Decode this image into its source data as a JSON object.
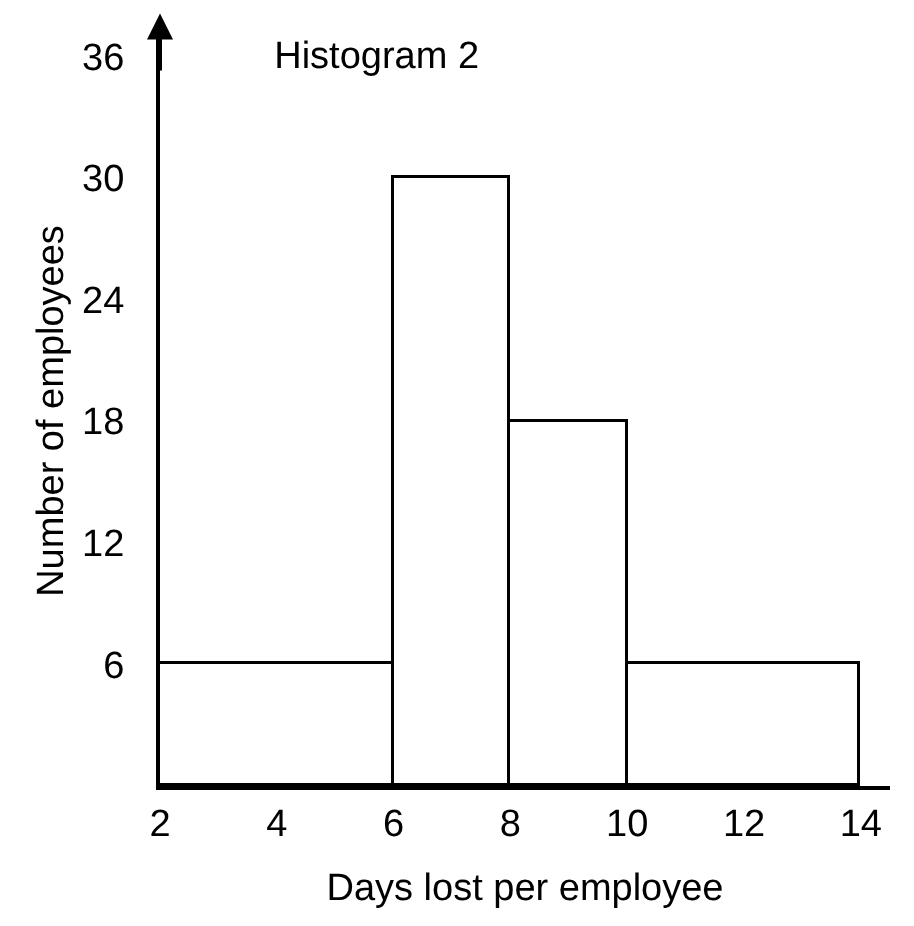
{
  "chart_data": {
    "type": "histogram",
    "title": "Histogram 2",
    "xlabel": "Days lost per employee",
    "ylabel": "Number of employees",
    "bins": [
      2,
      6,
      8,
      10,
      14
    ],
    "values": [
      6,
      30,
      18,
      6
    ],
    "color": "#ffffff",
    "xlim": [
      2,
      14.5
    ],
    "ylim": [
      0,
      37
    ],
    "xticks": [
      2,
      4,
      6,
      8,
      10,
      12,
      14
    ],
    "yticks": [
      6,
      12,
      18,
      24,
      30,
      36
    ]
  }
}
